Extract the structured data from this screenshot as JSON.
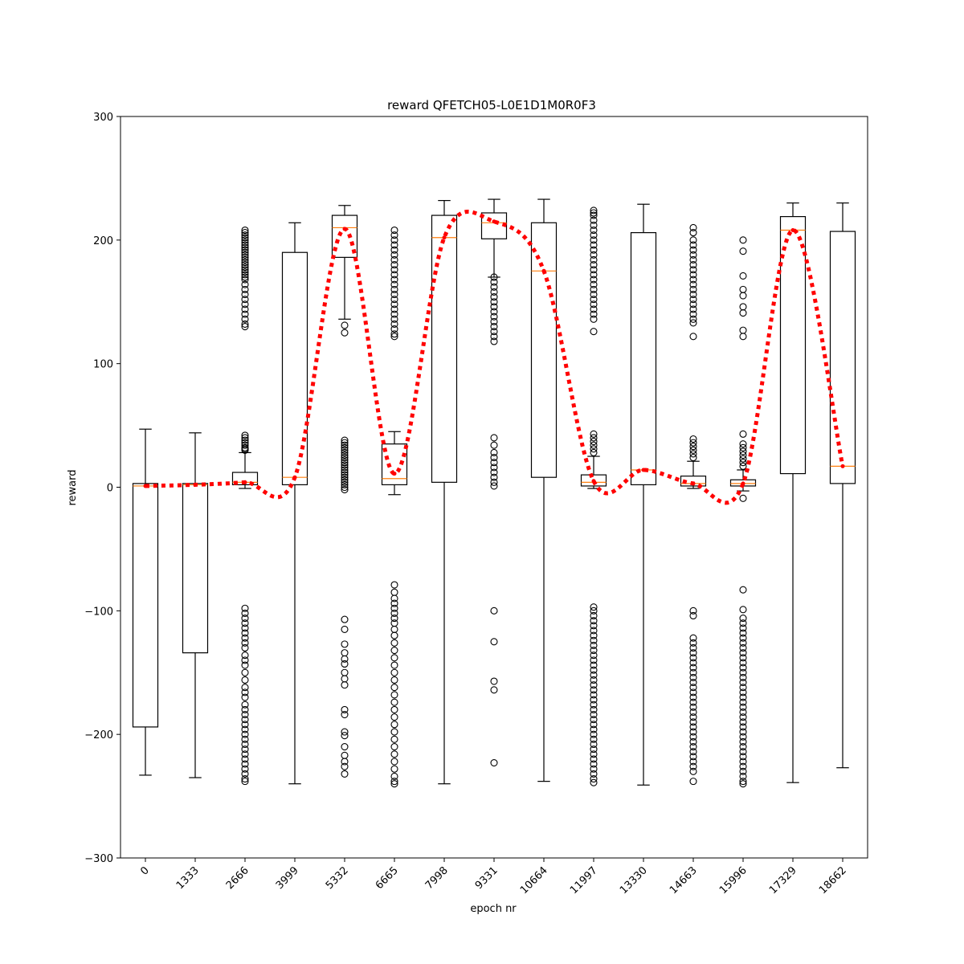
{
  "chart_data": {
    "type": "box",
    "title": "reward QFETCH05-L0E1D1M0R0F3",
    "xlabel": "epoch nr",
    "ylabel": "reward",
    "ylim": [
      -300,
      300
    ],
    "yticks": [
      -300,
      -200,
      -100,
      0,
      100,
      200,
      300
    ],
    "yticklabels": [
      "−300",
      "−200",
      "−100",
      "0",
      "100",
      "200",
      "300"
    ],
    "categories": [
      "0",
      "1333",
      "2666",
      "3999",
      "5332",
      "6665",
      "7998",
      "9331",
      "10664",
      "11997",
      "13330",
      "14663",
      "15996",
      "17329",
      "18662"
    ],
    "colors": {
      "box": "#000000",
      "median": "#ff7f0e",
      "mean_line": "#ff0000"
    },
    "boxes": [
      {
        "whislo": -233,
        "q1": -194,
        "med": 1,
        "q3": 3,
        "whishi": 47,
        "mean": 1,
        "fliers": []
      },
      {
        "whislo": -235,
        "q1": -134,
        "med": 2,
        "q3": 3,
        "whishi": 44,
        "mean": 2,
        "fliers": []
      },
      {
        "whislo": -1,
        "q1": 2,
        "med": 4,
        "q3": 12,
        "whishi": 28,
        "mean": 4,
        "fliers": [
          208,
          206,
          204,
          202,
          200,
          198,
          196,
          194,
          192,
          190,
          188,
          186,
          184,
          182,
          180,
          178,
          176,
          174,
          172,
          170,
          168,
          164,
          160,
          156,
          152,
          148,
          144,
          140,
          136,
          132,
          130,
          42,
          40,
          38,
          36,
          34,
          32,
          31,
          30,
          -98,
          -102,
          -106,
          -110,
          -114,
          -118,
          -122,
          -126,
          -130,
          -136,
          -140,
          -144,
          -150,
          -156,
          -162,
          -166,
          -170,
          -176,
          -180,
          -184,
          -188,
          -192,
          -196,
          -200,
          -204,
          -208,
          -212,
          -216,
          -220,
          -224,
          -228,
          -232,
          -236,
          -238
        ]
      },
      {
        "whislo": -240,
        "q1": 2,
        "med": 8,
        "q3": 190,
        "whishi": 214,
        "mean": 8,
        "fliers": []
      },
      {
        "whislo": 136,
        "q1": 186,
        "med": 210,
        "q3": 220,
        "whishi": 228,
        "mean": 209,
        "fliers": [
          131,
          125,
          38,
          36,
          34,
          32,
          30,
          28,
          26,
          24,
          22,
          20,
          18,
          16,
          14,
          12,
          10,
          8,
          6,
          4,
          2,
          0,
          -2,
          -107,
          -115,
          -127,
          -134,
          -139,
          -143,
          -150,
          -155,
          -160,
          -180,
          -184,
          -198,
          -201,
          -210,
          -217,
          -222,
          -226,
          -232
        ]
      },
      {
        "whislo": -6,
        "q1": 2,
        "med": 7,
        "q3": 35,
        "whishi": 45,
        "mean": 11,
        "fliers": [
          208,
          204,
          200,
          196,
          192,
          188,
          184,
          180,
          176,
          172,
          168,
          164,
          160,
          156,
          152,
          148,
          144,
          140,
          136,
          132,
          128,
          124,
          122,
          -79,
          -85,
          -90,
          -94,
          -98,
          -102,
          -106,
          -110,
          -115,
          -120,
          -126,
          -132,
          -138,
          -144,
          -150,
          -156,
          -162,
          -168,
          -174,
          -180,
          -186,
          -192,
          -198,
          -204,
          -210,
          -216,
          -222,
          -228,
          -234,
          -238,
          -240
        ]
      },
      {
        "whislo": -240,
        "q1": 4,
        "med": 202,
        "q3": 220,
        "whishi": 232,
        "mean": 202,
        "fliers": []
      },
      {
        "whislo": 170,
        "q1": 201,
        "med": 214,
        "q3": 222,
        "whishi": 233,
        "mean": 215,
        "fliers": [
          170,
          166,
          162,
          158,
          154,
          150,
          146,
          142,
          138,
          134,
          130,
          126,
          122,
          118,
          40,
          34,
          28,
          24,
          20,
          16,
          12,
          8,
          4,
          1,
          -100,
          -125,
          -157,
          -164,
          -223
        ]
      },
      {
        "whislo": -238,
        "q1": 8,
        "med": 175,
        "q3": 214,
        "whishi": 233,
        "mean": 175,
        "fliers": []
      },
      {
        "whislo": -1,
        "q1": 1,
        "med": 4,
        "q3": 10,
        "whishi": 25,
        "mean": 5,
        "fliers": [
          224,
          222,
          220,
          216,
          212,
          208,
          204,
          200,
          196,
          192,
          188,
          184,
          180,
          176,
          172,
          168,
          164,
          160,
          156,
          152,
          148,
          144,
          140,
          136,
          126,
          43,
          40,
          37,
          34,
          31,
          28,
          -97,
          -100,
          -104,
          -108,
          -112,
          -116,
          -120,
          -124,
          -128,
          -132,
          -136,
          -140,
          -144,
          -148,
          -152,
          -156,
          -160,
          -164,
          -168,
          -172,
          -176,
          -180,
          -184,
          -188,
          -192,
          -196,
          -200,
          -204,
          -208,
          -212,
          -216,
          -220,
          -224,
          -228,
          -232,
          -236,
          -239
        ]
      },
      {
        "whislo": -241,
        "q1": 2,
        "med": 14,
        "q3": 206,
        "whishi": 229,
        "mean": 14,
        "fliers": []
      },
      {
        "whislo": -1,
        "q1": 1,
        "med": 3,
        "q3": 9,
        "whishi": 21,
        "mean": 3,
        "fliers": [
          210,
          206,
          200,
          196,
          192,
          188,
          184,
          180,
          176,
          172,
          168,
          164,
          160,
          156,
          152,
          148,
          144,
          140,
          136,
          133,
          122,
          39,
          36,
          33,
          30,
          27,
          24,
          -100,
          -104,
          -122,
          -126,
          -130,
          -134,
          -138,
          -142,
          -146,
          -150,
          -154,
          -158,
          -162,
          -166,
          -170,
          -174,
          -178,
          -182,
          -186,
          -190,
          -194,
          -198,
          -202,
          -206,
          -210,
          -214,
          -218,
          -222,
          -226,
          -230,
          -238
        ]
      },
      {
        "whislo": -3,
        "q1": 1,
        "med": 3,
        "q3": 6,
        "whishi": 14,
        "mean": 3,
        "fliers": [
          200,
          191,
          171,
          160,
          155,
          146,
          141,
          127,
          122,
          43,
          35,
          32,
          29,
          26,
          23,
          20,
          17,
          -9,
          -83,
          -99,
          -106,
          -110,
          -114,
          -118,
          -122,
          -126,
          -130,
          -134,
          -138,
          -142,
          -146,
          -150,
          -154,
          -158,
          -162,
          -166,
          -170,
          -174,
          -178,
          -182,
          -186,
          -190,
          -194,
          -198,
          -202,
          -206,
          -210,
          -214,
          -218,
          -222,
          -226,
          -230,
          -234,
          -238,
          -240
        ]
      },
      {
        "whislo": -239,
        "q1": 11,
        "med": 208,
        "q3": 219,
        "whishi": 230,
        "mean": 208,
        "fliers": []
      },
      {
        "whislo": -227,
        "q1": 3,
        "med": 17,
        "q3": 207,
        "whishi": 230,
        "mean": 17,
        "fliers": []
      }
    ]
  }
}
